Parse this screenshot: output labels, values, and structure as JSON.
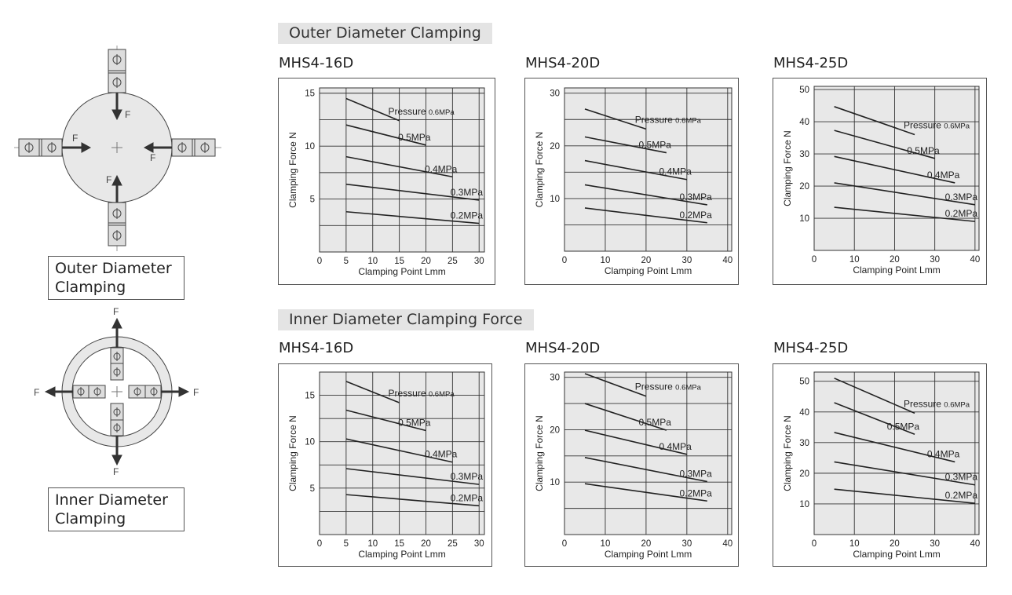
{
  "sections": {
    "outer_title": "Outer Diameter Clamping",
    "inner_title": "Inner Diameter Clamping Force"
  },
  "diagrams": {
    "outer_caption": "Outer Diameter Clamping",
    "inner_caption": "Inner Diameter Clamping",
    "force_label": "F"
  },
  "chart_data": [
    {
      "type": "line",
      "group": "Outer Diameter Clamping",
      "title": "MHS4-16D",
      "xlabel": "Clamping Point Lmm",
      "ylabel": "Clamping Force N",
      "xlim": [
        0,
        31
      ],
      "ylim": [
        0,
        15.5
      ],
      "xticks": [
        0,
        5,
        10,
        15,
        20,
        25,
        30
      ],
      "yticks": [
        5,
        10,
        15
      ],
      "xgrid": [
        5,
        10,
        15,
        20,
        25,
        30
      ],
      "ygrid": [
        2.5,
        5,
        7.5,
        10,
        12.5,
        15
      ],
      "series": [
        {
          "name": "Pressure 0.6MPa",
          "x": [
            5,
            15
          ],
          "y": [
            14.5,
            12.4
          ]
        },
        {
          "name": "0.5MPa",
          "x": [
            5,
            20
          ],
          "y": [
            12.0,
            10.1
          ]
        },
        {
          "name": "0.4MPa",
          "x": [
            5,
            25
          ],
          "y": [
            9.0,
            7.1
          ]
        },
        {
          "name": "0.3MPa",
          "x": [
            5,
            30
          ],
          "y": [
            6.4,
            4.9
          ]
        },
        {
          "name": "0.2MPa",
          "x": [
            5,
            30
          ],
          "y": [
            3.8,
            2.7
          ]
        }
      ]
    },
    {
      "type": "line",
      "group": "Outer Diameter Clamping",
      "title": "MHS4-20D",
      "xlabel": "Clamping Point Lmm",
      "ylabel": "Clamping Force N",
      "xlim": [
        0,
        41
      ],
      "ylim": [
        0,
        31
      ],
      "xticks": [
        0,
        10,
        20,
        30,
        40
      ],
      "yticks": [
        10,
        20,
        30
      ],
      "xgrid": [
        10,
        20,
        30,
        40
      ],
      "ygrid": [
        5,
        10,
        15,
        20,
        25,
        30
      ],
      "series": [
        {
          "name": "Pressure 0.6MPa",
          "x": [
            5,
            20
          ],
          "y": [
            27.0,
            23.2
          ]
        },
        {
          "name": "0.5MPa",
          "x": [
            5,
            25
          ],
          "y": [
            21.7,
            18.7
          ]
        },
        {
          "name": "0.4MPa",
          "x": [
            5,
            30
          ],
          "y": [
            17.2,
            13.6
          ]
        },
        {
          "name": "0.3MPa",
          "x": [
            5,
            35
          ],
          "y": [
            12.6,
            8.8
          ]
        },
        {
          "name": "0.2MPa",
          "x": [
            5,
            35
          ],
          "y": [
            8.2,
            5.4
          ]
        }
      ]
    },
    {
      "type": "line",
      "group": "Outer Diameter Clamping",
      "title": "MHS4-25D",
      "xlabel": "Clamping Point Lmm",
      "ylabel": "Clamping Force N",
      "xlim": [
        0,
        41
      ],
      "ylim": [
        0,
        51
      ],
      "xticks": [
        0,
        10,
        20,
        30,
        40
      ],
      "yticks": [
        10,
        20,
        30,
        40,
        50
      ],
      "xgrid": [
        10,
        20,
        30,
        40
      ],
      "ygrid": [
        10,
        20,
        30,
        40,
        50
      ],
      "series": [
        {
          "name": "Pressure 0.6MPa",
          "x": [
            5,
            25
          ],
          "y": [
            44.7,
            36.0
          ]
        },
        {
          "name": "0.5MPa",
          "x": [
            5,
            30
          ],
          "y": [
            37.3,
            28.6
          ]
        },
        {
          "name": "0.4MPa",
          "x": [
            5,
            35
          ],
          "y": [
            29.2,
            21.0
          ]
        },
        {
          "name": "0.3MPa",
          "x": [
            5,
            40
          ],
          "y": [
            21.0,
            14.2
          ]
        },
        {
          "name": "0.2MPa",
          "x": [
            5,
            40
          ],
          "y": [
            13.4,
            9.0
          ]
        }
      ]
    },
    {
      "type": "line",
      "group": "Inner Diameter Clamping Force",
      "title": "MHS4-16D",
      "xlabel": "Clamping Point Lmm",
      "ylabel": "Clamping Force N",
      "xlim": [
        0,
        31
      ],
      "ylim": [
        0,
        17.5
      ],
      "xticks": [
        0,
        5,
        10,
        15,
        20,
        25,
        30
      ],
      "yticks": [
        5,
        10,
        15
      ],
      "xgrid": [
        5,
        10,
        15,
        20,
        25,
        30
      ],
      "ygrid": [
        2.5,
        5,
        7.5,
        10,
        12.5,
        15,
        17.5
      ],
      "series": [
        {
          "name": "Pressure 0.6MPa",
          "x": [
            5,
            15
          ],
          "y": [
            16.5,
            14.2
          ]
        },
        {
          "name": "0.5MPa",
          "x": [
            5,
            20
          ],
          "y": [
            13.4,
            11.2
          ]
        },
        {
          "name": "0.4MPa",
          "x": [
            5,
            25
          ],
          "y": [
            10.3,
            7.8
          ]
        },
        {
          "name": "0.3MPa",
          "x": [
            5,
            30
          ],
          "y": [
            7.1,
            5.4
          ]
        },
        {
          "name": "0.2MPa",
          "x": [
            5,
            30
          ],
          "y": [
            4.3,
            3.1
          ]
        }
      ]
    },
    {
      "type": "line",
      "group": "Inner Diameter Clamping Force",
      "title": "MHS4-20D",
      "xlabel": "Clamping Point Lmm",
      "ylabel": "Clamping Force N",
      "xlim": [
        0,
        41
      ],
      "ylim": [
        0,
        31
      ],
      "xticks": [
        0,
        10,
        20,
        30,
        40
      ],
      "yticks": [
        10,
        20,
        30
      ],
      "xgrid": [
        10,
        20,
        30,
        40
      ],
      "ygrid": [
        5,
        10,
        15,
        20,
        25,
        30
      ],
      "series": [
        {
          "name": "Pressure 0.6MPa",
          "x": [
            5,
            20
          ],
          "y": [
            30.7,
            26.4
          ]
        },
        {
          "name": "0.5MPa",
          "x": [
            5,
            25
          ],
          "y": [
            25.0,
            19.9
          ]
        },
        {
          "name": "0.4MPa",
          "x": [
            5,
            30
          ],
          "y": [
            19.9,
            15.3
          ]
        },
        {
          "name": "0.3MPa",
          "x": [
            5,
            35
          ],
          "y": [
            14.7,
            10.1
          ]
        },
        {
          "name": "0.2MPa",
          "x": [
            5,
            35
          ],
          "y": [
            9.7,
            6.4
          ]
        }
      ]
    },
    {
      "type": "line",
      "group": "Inner Diameter Clamping Force",
      "title": "MHS4-25D",
      "xlabel": "Clamping Point Lmm",
      "ylabel": "Clamping Force N",
      "xlim": [
        0,
        41
      ],
      "ylim": [
        0,
        53
      ],
      "xticks": [
        0,
        10,
        20,
        30,
        40
      ],
      "yticks": [
        10,
        20,
        30,
        40,
        50
      ],
      "xgrid": [
        10,
        20,
        30,
        40
      ],
      "ygrid": [
        10,
        20,
        30,
        40,
        50
      ],
      "series": [
        {
          "name": "Pressure 0.6MPa",
          "x": [
            5,
            25
          ],
          "y": [
            51.0,
            39.6
          ]
        },
        {
          "name": "0.5MPa",
          "x": [
            5,
            25
          ],
          "y": [
            43.0,
            32.7
          ]
        },
        {
          "name": "0.4MPa",
          "x": [
            5,
            35
          ],
          "y": [
            33.3,
            23.7
          ]
        },
        {
          "name": "0.3MPa",
          "x": [
            5,
            40
          ],
          "y": [
            23.7,
            16.2
          ]
        },
        {
          "name": "0.2MPa",
          "x": [
            5,
            40
          ],
          "y": [
            14.8,
            10.2
          ]
        }
      ]
    }
  ]
}
